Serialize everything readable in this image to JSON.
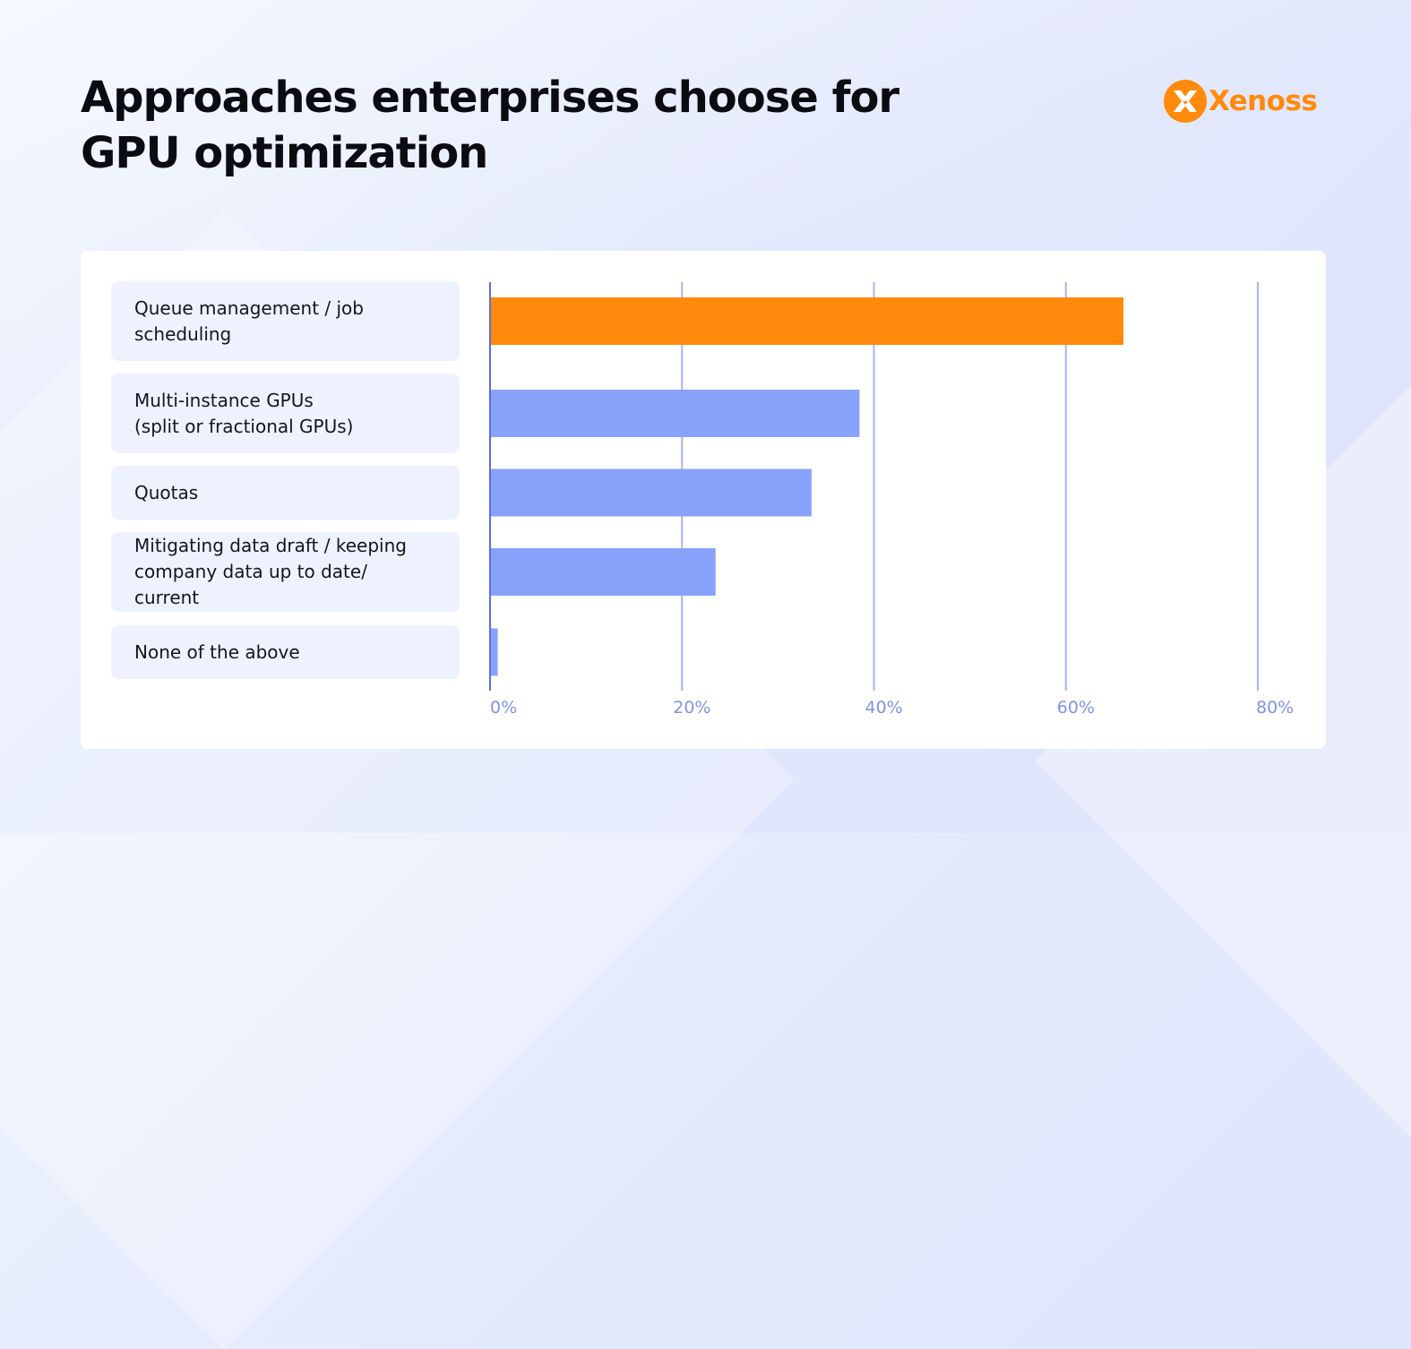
{
  "title": "Approaches enterprises choose for GPU optimization",
  "logo": {
    "text": "Xenoss",
    "color": "#ff8a0b",
    "icon": "xenoss-logo-icon"
  },
  "colors": {
    "highlight_bar": "#ff8a0b",
    "bar": "#88a2fa",
    "grid": "#a6b5ee",
    "axis": "#5a6fd4",
    "tick_text": "#7f93e6",
    "label_background": "#edf2fe"
  },
  "chart_data": {
    "type": "bar",
    "orientation": "horizontal",
    "title": "Approaches enterprises choose for GPU optimization",
    "categories": [
      "Queue management / job\nscheduling",
      "Multi-instance GPUs\n(split or fractional GPUs)",
      "Quotas",
      "Mitigating data draft / keeping\ncompany data up to date/ current",
      "None of the above"
    ],
    "values": [
      66,
      38.5,
      33.5,
      23.5,
      0.8
    ],
    "highlight_index": 0,
    "unit": "%",
    "xlim": [
      0,
      80
    ],
    "ticks": [
      0,
      20,
      40,
      60,
      80
    ],
    "tick_labels": [
      "0%",
      "20%",
      "40%",
      "60%",
      "80%"
    ],
    "grid": true,
    "xlabel": "",
    "ylabel": ""
  }
}
